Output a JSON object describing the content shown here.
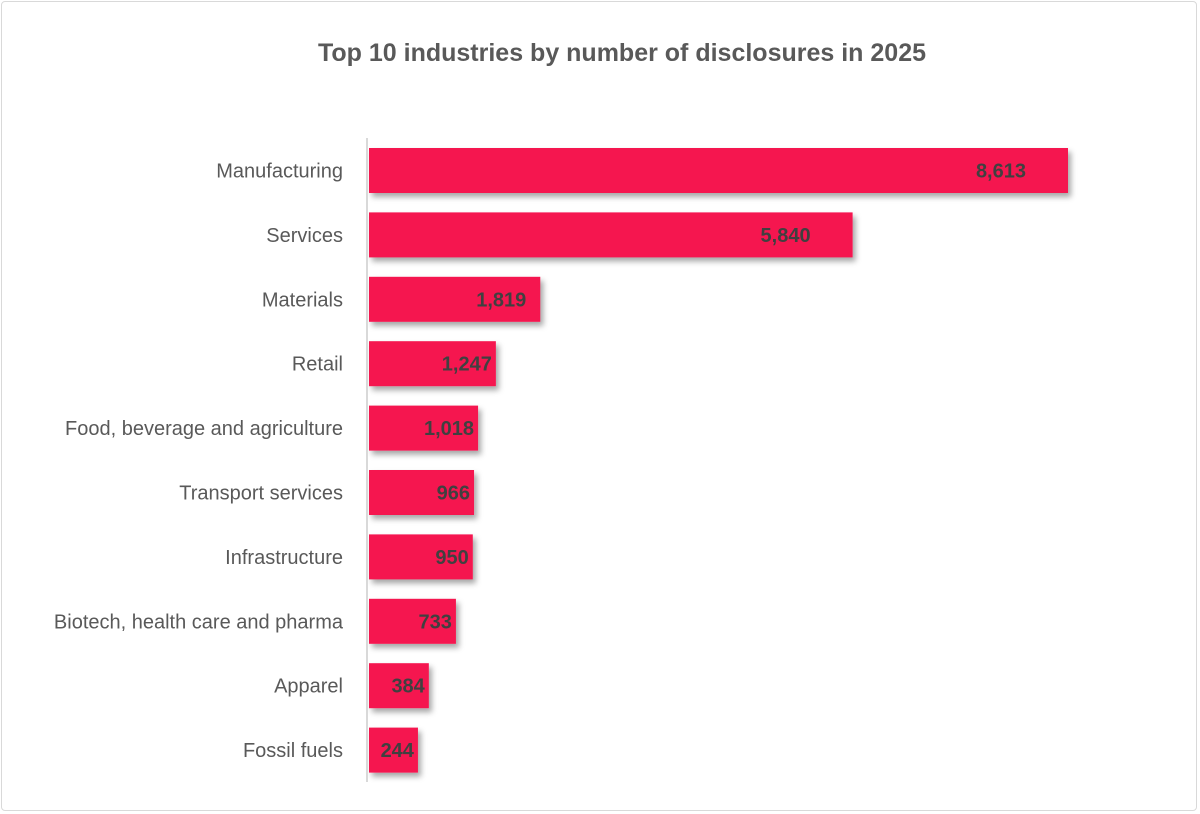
{
  "chart_data": {
    "type": "bar",
    "orientation": "horizontal",
    "title": "Top 10 industries by number of disclosures in 2025",
    "categories": [
      "Manufacturing",
      "Services",
      "Materials",
      "Retail",
      "Food, beverage and agriculture",
      "Transport services",
      "Infrastructure",
      "Biotech, health care and pharma",
      "Apparel",
      "Fossil fuels"
    ],
    "values": [
      8613,
      5840,
      1819,
      1247,
      1018,
      966,
      950,
      733,
      384,
      244
    ],
    "value_labels": [
      "8,613",
      "5,840",
      "1,819",
      "1,247",
      "1,018",
      "966",
      "950",
      "733",
      "384",
      "244"
    ],
    "xlabel": "",
    "ylabel": "",
    "grid": false,
    "legend": "none",
    "bar_color": "#F5174F"
  }
}
